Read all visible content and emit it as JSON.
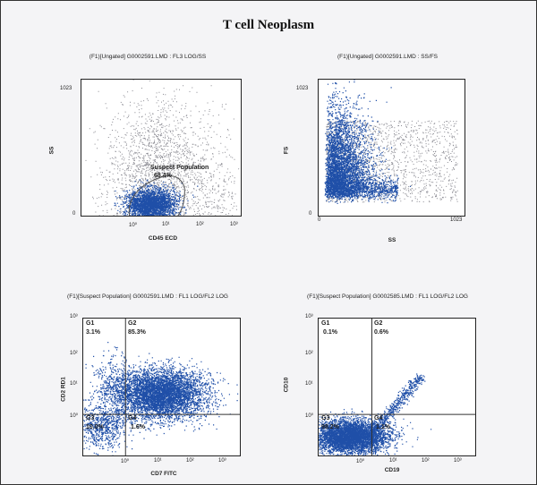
{
  "page_title": "T cell Neoplasm",
  "panels": [
    {
      "title": "(F1)[Ungated] G0002591.LMD : FL3 LOG/SS",
      "xlabel": "CD45 ECD",
      "ylabel": "SS",
      "x_ticks": [
        "10⁰",
        "10¹",
        "10²",
        "10³"
      ],
      "y_ticks": [
        "1023",
        "0"
      ],
      "gate_name": "Suspect Population",
      "gate_pct": "68.4%"
    },
    {
      "title": "(F1)[Ungated] G0002591.LMD : SS/FS",
      "xlabel": "SS",
      "ylabel": "FS",
      "x_ticks": [
        "0",
        "1023"
      ],
      "y_ticks": [
        "1023",
        "0"
      ]
    },
    {
      "title": "(F1)[Suspect Population] G0002591.LMD : FL1 LOG/FL2 LOG",
      "xlabel": "CD7 FITC",
      "ylabel": "CD2 RD1",
      "x_ticks": [
        "10⁰",
        "10¹",
        "10²",
        "10³"
      ],
      "y_ticks": [
        "10³",
        "10²",
        "10¹",
        "10⁰"
      ],
      "quadrants": [
        {
          "name": "G1",
          "pct": "3.1%"
        },
        {
          "name": "G2",
          "pct": "85.3%"
        },
        {
          "name": "G3",
          "pct": "10.0%"
        },
        {
          "name": "G4",
          "pct": "1.6%"
        }
      ]
    },
    {
      "title": "(F1)[Suspect Population] G0002585.LMD : FL1 LOG/FL2 LOG",
      "xlabel": "CD19",
      "ylabel": "CD10",
      "x_ticks": [
        "10⁰",
        "10¹",
        "10²",
        "10³"
      ],
      "y_ticks": [
        "10³",
        "10²",
        "10¹",
        "10⁰"
      ],
      "quadrants": [
        {
          "name": "G1",
          "pct": "0.1%"
        },
        {
          "name": "G2",
          "pct": "0.6%"
        },
        {
          "name": "G3",
          "pct": "98.2%"
        },
        {
          "name": "G4",
          "pct": "1.1%"
        }
      ]
    }
  ],
  "chart_data": [
    {
      "type": "scatter",
      "x_scale": "log",
      "x_range": [
        1,
        1000
      ],
      "y_range": [
        0,
        1023
      ],
      "clusters": [
        {
          "label": "Suspect Population",
          "center_x": 20,
          "center_y": 90,
          "percent": 68.4
        }
      ]
    },
    {
      "type": "scatter",
      "x_range": [
        0,
        1023
      ],
      "y_range": [
        0,
        1023
      ],
      "clusters": [
        {
          "center_x": 120,
          "center_y": 350
        }
      ]
    },
    {
      "type": "scatter",
      "x_scale": "log",
      "y_scale": "log",
      "x_range": [
        1,
        1000
      ],
      "y_range": [
        1,
        1000
      ],
      "quadrant_divider": {
        "x": 1,
        "y": 1
      },
      "quadrants": [
        {
          "name": "G1",
          "percent": 3.1
        },
        {
          "name": "G2",
          "percent": 85.3
        },
        {
          "name": "G3",
          "percent": 10.0
        },
        {
          "name": "G4",
          "percent": 1.6
        }
      ]
    },
    {
      "type": "scatter",
      "x_scale": "log",
      "y_scale": "log",
      "x_range": [
        1,
        1000
      ],
      "y_range": [
        1,
        1000
      ],
      "quadrant_divider": {
        "x": 2,
        "y": 1
      },
      "quadrants": [
        {
          "name": "G1",
          "percent": 0.1
        },
        {
          "name": "G2",
          "percent": 0.6
        },
        {
          "name": "G3",
          "percent": 98.2
        },
        {
          "name": "G4",
          "percent": 1.1
        }
      ]
    }
  ],
  "colors": {
    "dot_primary": "#1f4fa8",
    "dot_gray": "#8a8a92",
    "gate_outline": "#555555"
  }
}
